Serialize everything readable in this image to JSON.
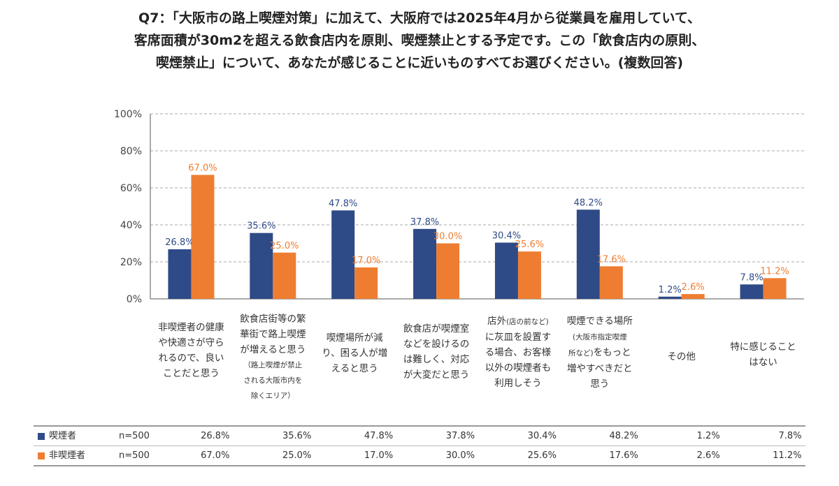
{
  "title_lines": [
    "Q7：「大阪市の路上喫煙対策」に加えて、大阪府では2025年4月から従業員を雇用していて、",
    "客席面積が30m2を超える飲食店内を原則、喫煙禁止とする予定です。この「飲食店内の原則、",
    "喫煙禁止」について、あなたが感じることに近いものすべてお選びください。(複数回答)"
  ],
  "colors": {
    "smoker": "#2e4a87",
    "nonsmoker": "#ef7d31",
    "grid": "#aaaaaa",
    "axis": "#555555"
  },
  "chart_data": {
    "type": "bar",
    "y_ticks": [
      "0%",
      "20%",
      "40%",
      "60%",
      "80%",
      "100%"
    ],
    "ylim": [
      0,
      100
    ],
    "grid": "dashed horizontal",
    "categories": [
      {
        "lines": [
          "非喫煙者の健康",
          "や快適さが守ら",
          "れるので、良い",
          "ことだと思う"
        ]
      },
      {
        "lines": [
          "飲食店街等の繁",
          "華街で路上喫煙",
          "が増えると思う"
        ],
        "sub_lines": [
          "（路上喫煙が禁止",
          "される大阪市内を",
          "除くエリア）"
        ]
      },
      {
        "lines": [
          "喫煙場所が減",
          "り、困る人が増",
          "えると思う"
        ]
      },
      {
        "lines": [
          "飲食店が喫煙室",
          "などを設けるの",
          "は難しく、対応",
          "が大変だと思う"
        ]
      },
      {
        "lines_rich": [
          [
            "店外",
            "(店の前など)"
          ],
          [
            "に灰皿を設置す"
          ],
          [
            "る場合、お客様"
          ],
          [
            "以外の喫煙者も"
          ],
          [
            "利用しそう"
          ]
        ]
      },
      {
        "lines_rich": [
          [
            "喫煙できる場所"
          ],
          [
            "",
            "(大阪市指定喫煙"
          ],
          [
            "",
            "所など)",
            "をもっと"
          ],
          [
            "増やすべきだと"
          ],
          [
            "思う"
          ]
        ]
      },
      {
        "lines": [
          "その他"
        ]
      },
      {
        "lines": [
          "特に感じること",
          "はない"
        ]
      }
    ],
    "series": [
      {
        "name": "喫煙者",
        "n": "n=500",
        "values": [
          26.8,
          35.6,
          47.8,
          37.8,
          30.4,
          48.2,
          1.2,
          7.8
        ],
        "labels": [
          "26.8%",
          "35.6%",
          "47.8%",
          "37.8%",
          "30.4%",
          "48.2%",
          "1.2%",
          "7.8%"
        ]
      },
      {
        "name": "非喫煙者",
        "n": "n=500",
        "values": [
          67.0,
          25.0,
          17.0,
          30.0,
          25.6,
          17.6,
          2.6,
          11.2
        ],
        "labels": [
          "67.0%",
          "25.0%",
          "17.0%",
          "30.0%",
          "25.6%",
          "17.6%",
          "2.6%",
          "11.2%"
        ]
      }
    ]
  }
}
